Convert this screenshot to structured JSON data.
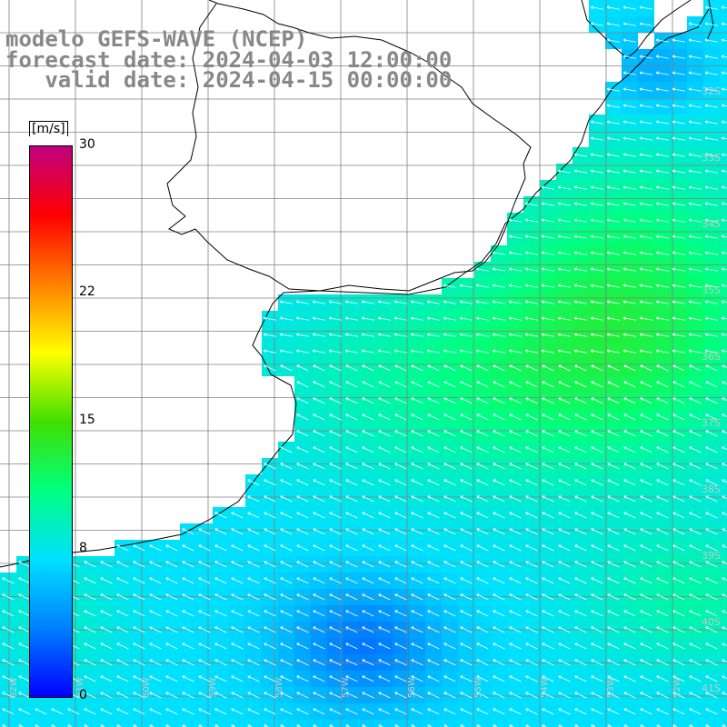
{
  "header": {
    "model_line": "modelo GEFS-WAVE (NCEP)",
    "forecast_line": "forecast date: 2024-04-03 12:00:00",
    "valid_line": "   valid date: 2024-04-15 00:00:00"
  },
  "colorbar": {
    "unit": "[m/s]",
    "ticks": [
      {
        "value": 30,
        "label": "30"
      },
      {
        "value": 22,
        "label": "22"
      },
      {
        "value": 15,
        "label": "15"
      },
      {
        "value": 8,
        "label": "8"
      },
      {
        "value": 0,
        "label": "0"
      }
    ],
    "range": [
      0,
      30
    ],
    "colors": [
      "#0000ff",
      "#0080ff",
      "#00e0ff",
      "#00ff80",
      "#40e000",
      "#ffff00",
      "#ff8000",
      "#ff0000",
      "#c00080"
    ]
  },
  "map": {
    "lat_labels": [
      "32S",
      "33S",
      "34S",
      "35S",
      "36S",
      "37S",
      "38S",
      "39S",
      "40S",
      "41S"
    ],
    "lon_labels": [
      "62W",
      "61W",
      "60W",
      "59W",
      "58W",
      "57W",
      "56W",
      "55W",
      "54W",
      "53W",
      "52W"
    ],
    "field": "10 m wind speed",
    "wind_direction": "easterly / north-easterly toward the coast",
    "colors": {
      "land": "#ffffff",
      "coast": "#000000",
      "grid": "#808080",
      "arrow": "#ffffff"
    }
  }
}
